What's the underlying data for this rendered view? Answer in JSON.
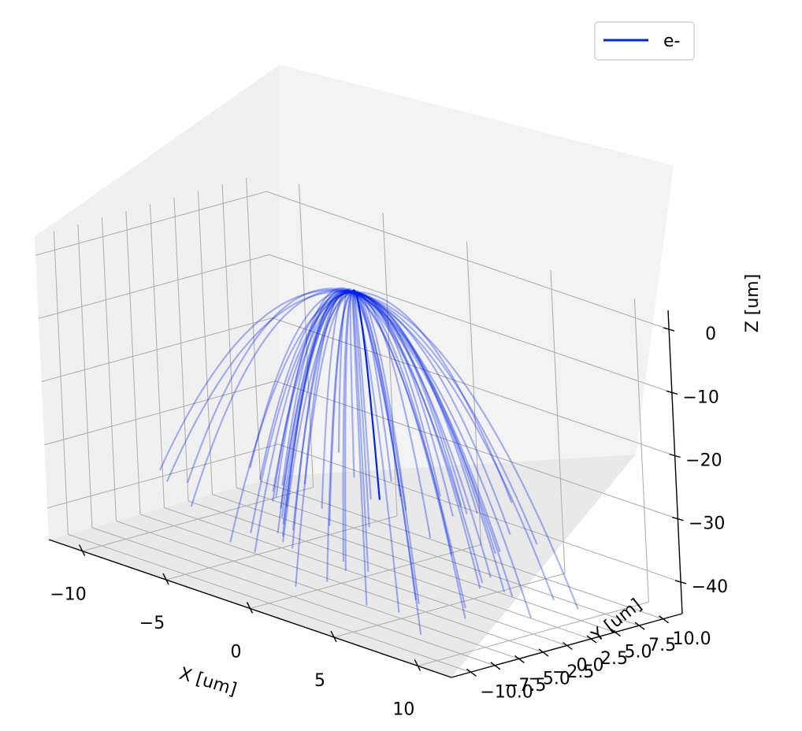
{
  "chart_data": {
    "type": "line",
    "projection": "3d",
    "xlabel": "X [um]",
    "ylabel": "Y [um]",
    "zlabel": "Z [um]",
    "xlim": [
      -12,
      12
    ],
    "ylim": [
      -12,
      12
    ],
    "zlim": [
      -45,
      3
    ],
    "x_ticks": [
      "−10",
      "−5",
      "0",
      "5",
      "10"
    ],
    "x_tick_values": [
      -10,
      -5,
      0,
      5,
      10
    ],
    "y_ticks": [
      "−10.0",
      "−7.5",
      "−5.0",
      "−2.5",
      "0.0",
      "2.5",
      "5.0",
      "7.5",
      "10.0"
    ],
    "y_tick_values": [
      -10,
      -7.5,
      -5,
      -2.5,
      0,
      2.5,
      5,
      7.5,
      10
    ],
    "z_ticks": [
      "0",
      "−10",
      "−20",
      "−30",
      "−40"
    ],
    "z_tick_values": [
      0,
      -10,
      -20,
      -30,
      -40
    ],
    "grid": true,
    "legend": {
      "placement": "top-right",
      "entries": [
        {
          "label": "e-",
          "color": "#0022ee"
        }
      ]
    },
    "series_color": "#0022ee",
    "trajectory_shape": "parabola z = -k*r^2 from origin",
    "n_faint_trajectories": 64,
    "faint_opacity": 0.33,
    "highlight": {
      "direction_deg": 115,
      "range_um": 9.5,
      "end_z_um": -40
    }
  }
}
